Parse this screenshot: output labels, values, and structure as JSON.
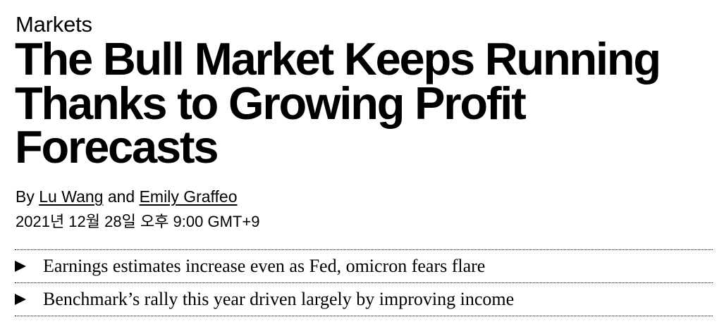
{
  "article": {
    "section": "Markets",
    "headline": "The Bull Market Keeps Running Thanks to Growing Profit Forecasts",
    "byline": {
      "prefix": "By",
      "authors": [
        {
          "name": "Lu Wang"
        },
        {
          "name": "Emily Graffeo"
        }
      ],
      "conjunction": "and"
    },
    "timestamp": "2021년 12월 28일 오후 9:00 GMT+9",
    "abstract": [
      {
        "icon": "triangle-right-icon",
        "text": "Earnings estimates increase even as Fed, omicron fears flare"
      },
      {
        "icon": "triangle-right-icon",
        "text": "Benchmark’s rally this year driven largely by improving income"
      }
    ]
  }
}
